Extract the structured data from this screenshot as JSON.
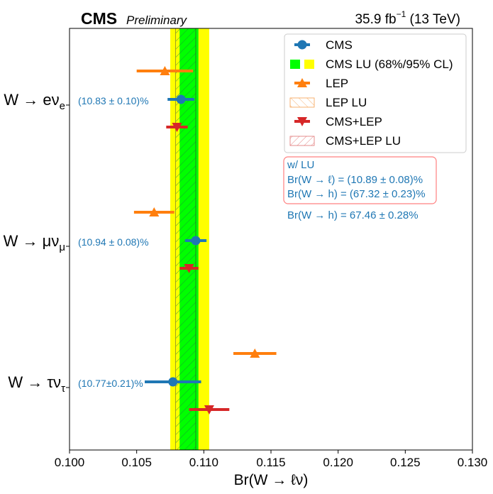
{
  "header": {
    "experiment": "CMS",
    "status": "Preliminary",
    "lumi_value": "35.9",
    "lumi_unit": "fb",
    "lumi_exp": "−1",
    "energy": "(13 TeV)"
  },
  "colors": {
    "cms": "#1f77b4",
    "lep": "#ff7f0e",
    "comb": "#d62728",
    "band68": "#00ff00",
    "band95": "#ffff00"
  },
  "chart_data": {
    "type": "scatter",
    "xlabel": "Br(W → ℓν)",
    "xlim": [
      0.1,
      0.13
    ],
    "xticks": [
      "0.100",
      "0.105",
      "0.110",
      "0.115",
      "0.120",
      "0.125",
      "0.130"
    ],
    "categories": [
      {
        "label_main": "W → eν",
        "label_sub": "e",
        "value_text": "(10.83 ± 0.10)%"
      },
      {
        "label_main": "W → μν",
        "label_sub": "μ",
        "value_text": "(10.94 ± 0.08)%"
      },
      {
        "label_main": "W → τν",
        "label_sub": "τ",
        "value_text": "(10.77±0.21)%"
      }
    ],
    "series": [
      {
        "name": "CMS",
        "marker": "circle",
        "values": [
          0.1083,
          0.1094,
          0.1077
        ],
        "errors": [
          0.001,
          0.0008,
          0.0021
        ]
      },
      {
        "name": "LEP",
        "marker": "triangle-up",
        "values": [
          0.1071,
          0.1063,
          0.1138
        ],
        "errors": [
          0.0021,
          0.0015,
          0.0016
        ]
      },
      {
        "name": "CMS+LEP",
        "marker": "triangle-down",
        "values": [
          0.108,
          0.1089,
          0.1104
        ],
        "errors": [
          0.0008,
          0.0007,
          0.0015
        ]
      }
    ],
    "lu_band": {
      "central": 0.1089,
      "ci68": [
        0.1082,
        0.1096
      ],
      "ci95": [
        0.1075,
        0.1104
      ],
      "cms_lep_hatch": [
        0.1079,
        0.1094
      ]
    },
    "legend": [
      {
        "label": "CMS",
        "kind": "cms"
      },
      {
        "label": "CMS LU (68%/95% CL)",
        "kind": "band"
      },
      {
        "label": "LEP",
        "kind": "lep"
      },
      {
        "label": "LEP LU",
        "kind": "lep_lu"
      },
      {
        "label": "CMS+LEP",
        "kind": "comb"
      },
      {
        "label": "CMS+LEP LU",
        "kind": "comb_lu"
      }
    ],
    "legend_position": "top-right",
    "annotations": {
      "lu_title": "w/ LU",
      "lu_lepton": "Br(W → ℓ) = (10.89 ± 0.08)%",
      "lu_hadron": "Br(W → h) = (67.32 ± 0.23)%",
      "hadron": "Br(W → h) = 67.46 ± 0.28%"
    }
  }
}
